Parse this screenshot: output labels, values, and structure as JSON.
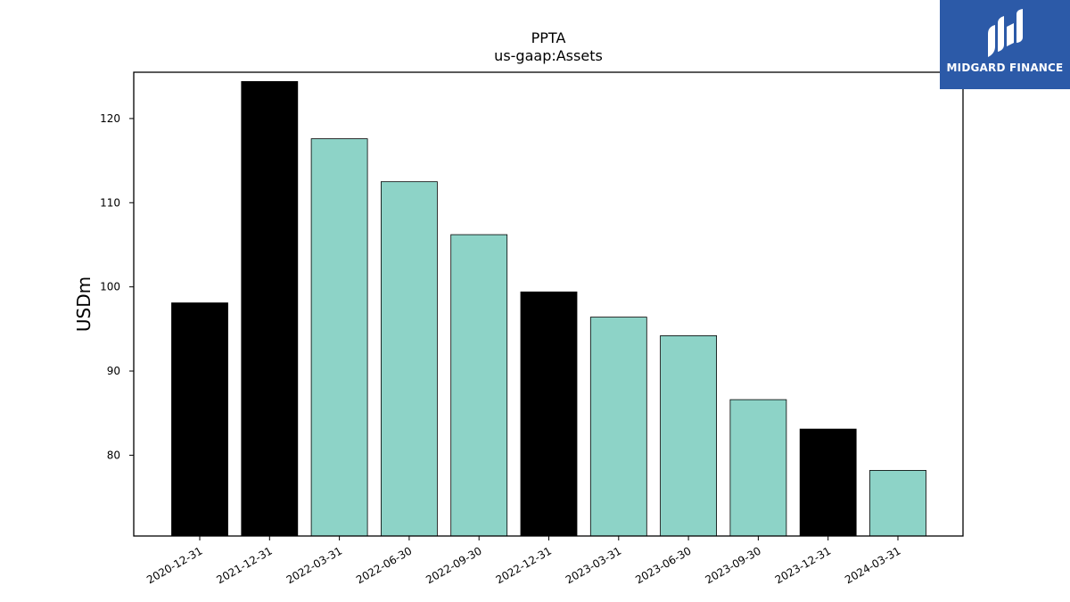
{
  "chart_data": {
    "type": "bar",
    "title": "PPTA",
    "subtitle": "us-gaap:Assets",
    "ylabel": "USDm",
    "xlabel": "",
    "ylim": [
      70.4,
      125.5
    ],
    "yticks": [
      80,
      90,
      100,
      110,
      120
    ],
    "categories": [
      "2020-12-31",
      "2021-12-31",
      "2022-03-31",
      "2022-06-30",
      "2022-09-30",
      "2022-12-31",
      "2023-03-31",
      "2023-06-30",
      "2023-09-30",
      "2023-12-31",
      "2024-03-31"
    ],
    "values": [
      98.1,
      124.4,
      117.6,
      112.5,
      106.2,
      99.4,
      96.4,
      94.2,
      86.6,
      83.1,
      78.2
    ],
    "period_types": [
      "annual",
      "annual",
      "quarterly",
      "quarterly",
      "quarterly",
      "annual",
      "quarterly",
      "quarterly",
      "quarterly",
      "annual",
      "quarterly"
    ],
    "colors": {
      "annual": "#000000",
      "quarterly": "#8dd3c7"
    },
    "grid": false,
    "legend": "none"
  },
  "watermark": {
    "text": "MIDGARD FINANCE",
    "background": "#2c5aa8"
  }
}
